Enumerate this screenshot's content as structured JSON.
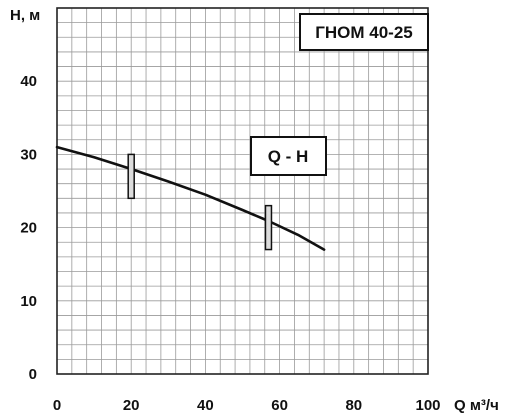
{
  "chart_data": {
    "type": "line",
    "title": "ГНОМ 40-25",
    "curve_label": "Q - H",
    "xlabel": "Q м³/ч",
    "ylabel": "H, м",
    "xlim": [
      0,
      100
    ],
    "ylim": [
      0,
      50
    ],
    "x_ticks": [
      0,
      20,
      40,
      60,
      80,
      100
    ],
    "y_ticks": [
      0,
      10,
      20,
      30,
      40
    ],
    "grid": true,
    "series": [
      {
        "x": [
          0,
          10,
          20,
          30,
          40,
          50,
          57,
          65,
          72
        ],
        "y": [
          31,
          29.6,
          28,
          26.3,
          24.5,
          22.4,
          20.9,
          19,
          17
        ]
      }
    ],
    "working_range": [
      {
        "x": 20,
        "y_min": 24,
        "y_max": 30
      },
      {
        "x": 57,
        "y_min": 17,
        "y_max": 23
      }
    ]
  }
}
